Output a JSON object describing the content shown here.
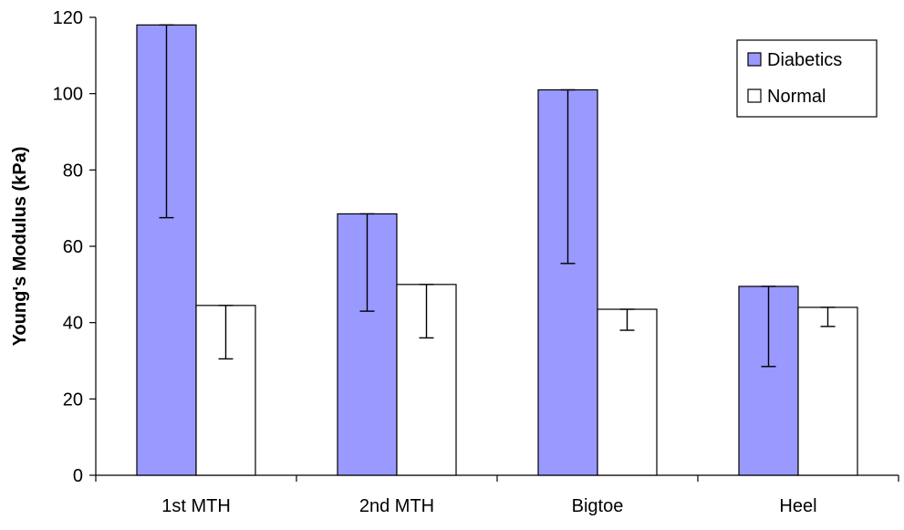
{
  "chart_data": {
    "type": "bar",
    "title": "",
    "xlabel": "",
    "ylabel": "Young's Modulus (kPa)",
    "ylim": [
      0,
      120
    ],
    "yticks": [
      0,
      20,
      40,
      60,
      80,
      100,
      120
    ],
    "categories": [
      "1st MTH",
      "2nd MTH",
      "Bigtoe",
      "Heel"
    ],
    "series": [
      {
        "name": "Diabetics",
        "color": "#9999ff",
        "values": [
          118,
          68.5,
          101,
          49.5
        ],
        "error_lower": [
          67.5,
          43,
          55.5,
          28.5
        ]
      },
      {
        "name": "Normal",
        "color": "#ffffff",
        "values": [
          44.5,
          50,
          43.5,
          44
        ],
        "error_lower": [
          30.5,
          36,
          38,
          39
        ]
      }
    ],
    "grid": false,
    "legend_position": "top-right"
  }
}
